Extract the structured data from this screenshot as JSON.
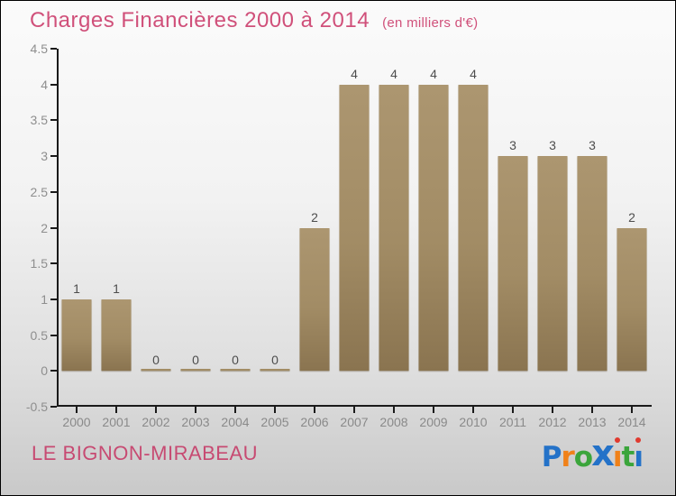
{
  "title": {
    "text": "Charges Financières 2000 à 2014",
    "subtitle": "(en milliers d'€)"
  },
  "footer": {
    "location": "LE BIGNON-MIRABEAU",
    "logo": {
      "text": "Proxiti",
      "letters": [
        {
          "ch": "P",
          "color": "#2472c8",
          "big": false,
          "dot": false
        },
        {
          "ch": "r",
          "color": "#f08119",
          "big": false,
          "dot": false
        },
        {
          "ch": "o",
          "color": "#3ba53b",
          "big": false,
          "dot": false
        },
        {
          "ch": "x",
          "color": "#2472c8",
          "big": true,
          "dot": false
        },
        {
          "ch": "ı",
          "color": "#f08119",
          "big": false,
          "dot": true
        },
        {
          "ch": "t",
          "color": "#3ba53b",
          "big": false,
          "dot": false
        },
        {
          "ch": "ı",
          "color": "#2472c8",
          "big": false,
          "dot": true
        }
      ],
      "dot_color": "#e03a2f"
    }
  },
  "colors": {
    "title_pink": "#d0507a",
    "bar_top": "#ac9670",
    "bar_bottom": "#8a7450",
    "axis": "#1a1a1a",
    "tick_label_gray": "#8a8a8a",
    "value_label_gray": "#4d4d4d"
  },
  "chart_data": {
    "type": "bar",
    "title": "Charges Financières 2000 à 2014",
    "subtitle": "(en milliers d'€)",
    "categories": [
      "2000",
      "2001",
      "2002",
      "2003",
      "2004",
      "2005",
      "2006",
      "2007",
      "2008",
      "2009",
      "2010",
      "2011",
      "2012",
      "2013",
      "2014"
    ],
    "values": [
      1,
      1,
      0,
      0,
      0,
      0,
      2,
      4,
      4,
      4,
      4,
      3,
      3,
      3,
      2
    ],
    "xlabel": "",
    "ylabel": "",
    "ylim": [
      -0.5,
      4.5
    ],
    "ytick_step": 0.5,
    "grid": false,
    "value_labels": true,
    "legend": "none"
  }
}
